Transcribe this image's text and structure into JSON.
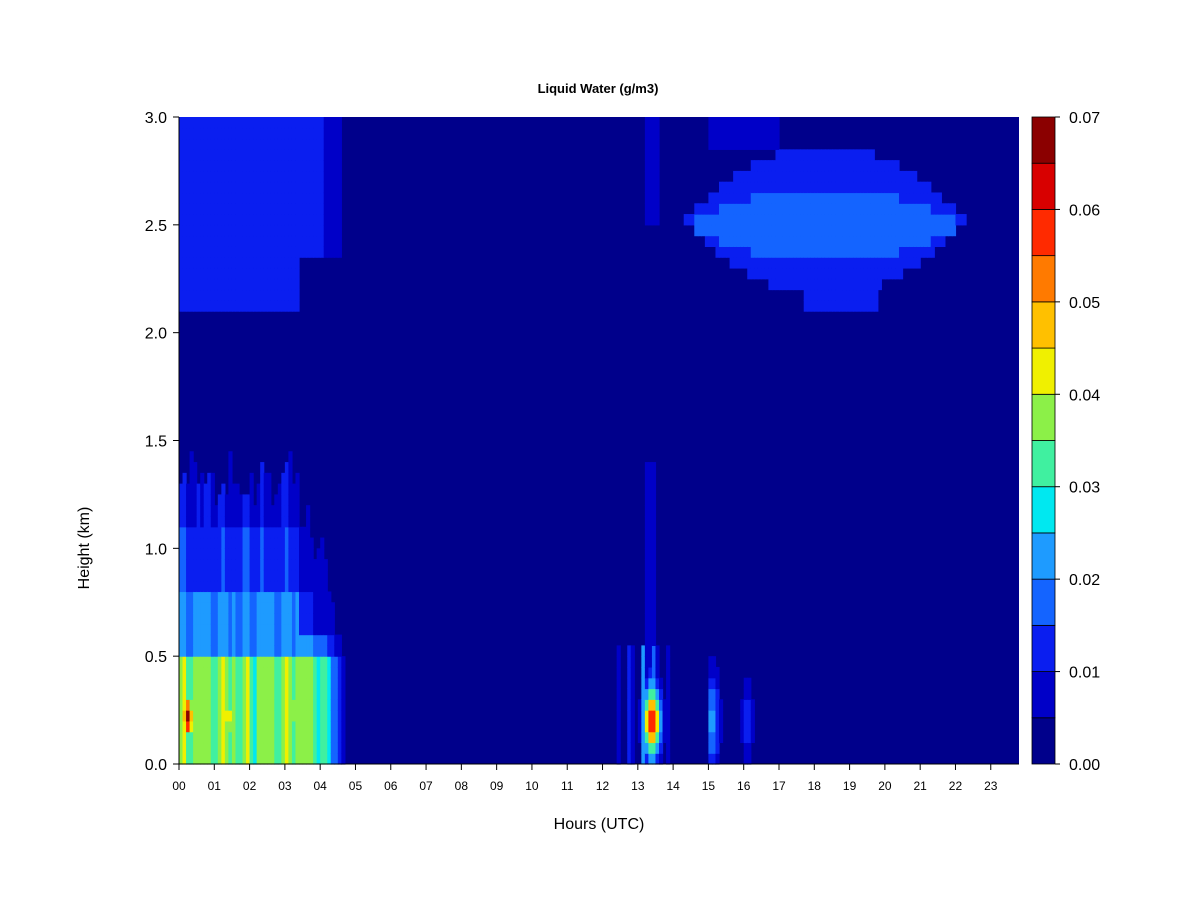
{
  "chart_data": {
    "type": "heatmap",
    "title": "Liquid Water (g/m3)",
    "xlabel": "Hours (UTC)",
    "ylabel": "Height (km)",
    "xlim": [
      0,
      23.8
    ],
    "ylim": [
      0,
      3.0
    ],
    "x_ticks": [
      "00",
      "01",
      "02",
      "03",
      "04",
      "05",
      "06",
      "07",
      "08",
      "09",
      "10",
      "11",
      "12",
      "13",
      "14",
      "15",
      "16",
      "17",
      "18",
      "19",
      "20",
      "21",
      "22",
      "23"
    ],
    "y_ticks": [
      "0.0",
      "0.5",
      "1.0",
      "1.5",
      "2.0",
      "2.5",
      "3.0"
    ],
    "colorbar": {
      "levels": [
        0.0,
        0.005,
        0.01,
        0.015,
        0.02,
        0.025,
        0.03,
        0.035,
        0.04,
        0.045,
        0.05,
        0.055,
        0.06,
        0.065,
        0.07
      ],
      "colors": [
        "#00008B",
        "#0000C8",
        "#0A1EF0",
        "#1464FF",
        "#1E9BFF",
        "#00E8F0",
        "#40F0A0",
        "#8CF048",
        "#F0F000",
        "#FFC000",
        "#FF7A00",
        "#FF2A00",
        "#D80000",
        "#8B0000"
      ],
      "tick_labels": [
        "0.00",
        "0.01",
        "0.02",
        "0.03",
        "0.04",
        "0.05",
        "0.06",
        "0.07"
      ]
    },
    "features": [
      {
        "x0": 0.0,
        "x1": 4.8,
        "y0": 0.0,
        "y1": 1.45,
        "peak": 0.066,
        "peak_x": 0.25,
        "peak_y": 0.22,
        "note_level": "lower cloud"
      },
      {
        "x0": 0.0,
        "x1": 4.6,
        "y0": 2.1,
        "y1": 3.0,
        "peak": 0.012,
        "note_level": "upper cloud"
      },
      {
        "x0": 12.0,
        "x1": 14.0,
        "y0": 0.0,
        "y1": 1.4,
        "peak": 0.06,
        "peak_x": 13.4,
        "peak_y": 0.2
      },
      {
        "x0": 15.0,
        "x1": 16.4,
        "y0": 0.0,
        "y1": 0.55,
        "peak": 0.022
      },
      {
        "x0": 14.3,
        "x1": 22.3,
        "y0": 2.1,
        "y1": 2.7,
        "peak": 0.02,
        "peak_x": 18.8,
        "peak_y": 2.5
      }
    ]
  }
}
